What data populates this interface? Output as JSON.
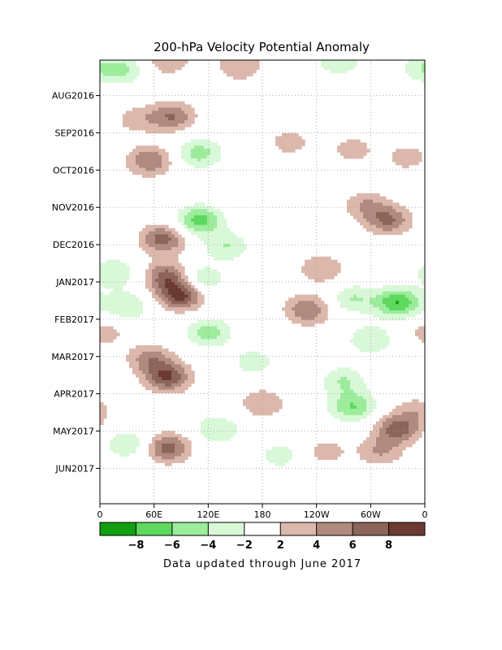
{
  "chart_data": {
    "type": "heatmap",
    "title": "200-hPa Velocity Potential Anomaly",
    "xlabel": "",
    "ylabel": "",
    "x_ticks": [
      "0",
      "60E",
      "120E",
      "180",
      "120W",
      "60W",
      "0"
    ],
    "y_ticks": [
      "AUG2016",
      "SEP2016",
      "OCT2016",
      "NOV2016",
      "DEC2016",
      "JAN2017",
      "FEB2017",
      "MAR2017",
      "APR2017",
      "MAY2017",
      "JUN2017"
    ],
    "x_range": [
      "0",
      "0"
    ],
    "y_range": [
      "JUL2016",
      "JUN2017"
    ],
    "y_direction": "time increases downward",
    "grid": true,
    "colorbar": {
      "tick_labels": [
        "-8",
        "-6",
        "-4",
        "-2",
        "2",
        "4",
        "6",
        "8"
      ],
      "colors": [
        "#12a012",
        "#5ed85e",
        "#9cec9c",
        "#d8f8d8",
        "#ffffff",
        "#dcb8ac",
        "#b08a80",
        "#8c645a",
        "#6b3a32"
      ]
    },
    "anomalies": [
      {
        "lon": 25,
        "month": 0.25,
        "value": -4
      },
      {
        "lon": 75,
        "month": 0.0,
        "value": 4
      },
      {
        "lon": 155,
        "month": 0.15,
        "value": 4
      },
      {
        "lon": 265,
        "month": 0.0,
        "value": -4
      },
      {
        "lon": 355,
        "month": 0.2,
        "value": -3
      },
      {
        "lon": 80,
        "month": 1.5,
        "value": 6
      },
      {
        "lon": 40,
        "month": 1.6,
        "value": 3
      },
      {
        "lon": 110,
        "month": 2.5,
        "value": -5
      },
      {
        "lon": 55,
        "month": 2.7,
        "value": 6
      },
      {
        "lon": 280,
        "month": 2.4,
        "value": 3
      },
      {
        "lon": 340,
        "month": 2.6,
        "value": 3
      },
      {
        "lon": 210,
        "month": 2.2,
        "value": 3
      },
      {
        "lon": 295,
        "month": 3.9,
        "value": 4
      },
      {
        "lon": 320,
        "month": 4.3,
        "value": 6
      },
      {
        "lon": 110,
        "month": 4.3,
        "value": -7
      },
      {
        "lon": 70,
        "month": 4.8,
        "value": 7
      },
      {
        "lon": 140,
        "month": 5.0,
        "value": -4
      },
      {
        "lon": 75,
        "month": 5.8,
        "value": 7
      },
      {
        "lon": 245,
        "month": 5.6,
        "value": 4
      },
      {
        "lon": 110,
        "month": 5.9,
        "value": -5
      },
      {
        "lon": 15,
        "month": 5.7,
        "value": -4
      },
      {
        "lon": 90,
        "month": 6.3,
        "value": 9
      },
      {
        "lon": 230,
        "month": 6.7,
        "value": 6
      },
      {
        "lon": 330,
        "month": 6.5,
        "value": -8
      },
      {
        "lon": 280,
        "month": 6.4,
        "value": -4
      },
      {
        "lon": 30,
        "month": 6.6,
        "value": -4
      },
      {
        "lon": 120,
        "month": 7.3,
        "value": -5
      },
      {
        "lon": 300,
        "month": 7.5,
        "value": -4
      },
      {
        "lon": 5,
        "month": 7.3,
        "value": 3
      },
      {
        "lon": 75,
        "month": 8.5,
        "value": 8
      },
      {
        "lon": 55,
        "month": 8.0,
        "value": 5
      },
      {
        "lon": 270,
        "month": 8.6,
        "value": -4
      },
      {
        "lon": 170,
        "month": 8.1,
        "value": -3
      },
      {
        "lon": 180,
        "month": 9.2,
        "value": 4
      },
      {
        "lon": 280,
        "month": 9.3,
        "value": -6
      },
      {
        "lon": 350,
        "month": 9.4,
        "value": 3
      },
      {
        "lon": 330,
        "month": 9.9,
        "value": 7
      },
      {
        "lon": 130,
        "month": 9.9,
        "value": -4
      },
      {
        "lon": 75,
        "month": 10.4,
        "value": 7
      },
      {
        "lon": 30,
        "month": 10.3,
        "value": -4
      },
      {
        "lon": 250,
        "month": 10.5,
        "value": 3
      },
      {
        "lon": 310,
        "month": 10.5,
        "value": 4
      },
      {
        "lon": 200,
        "month": 10.6,
        "value": -3
      }
    ]
  },
  "footer": {
    "note": "Data updated through June 2017"
  }
}
